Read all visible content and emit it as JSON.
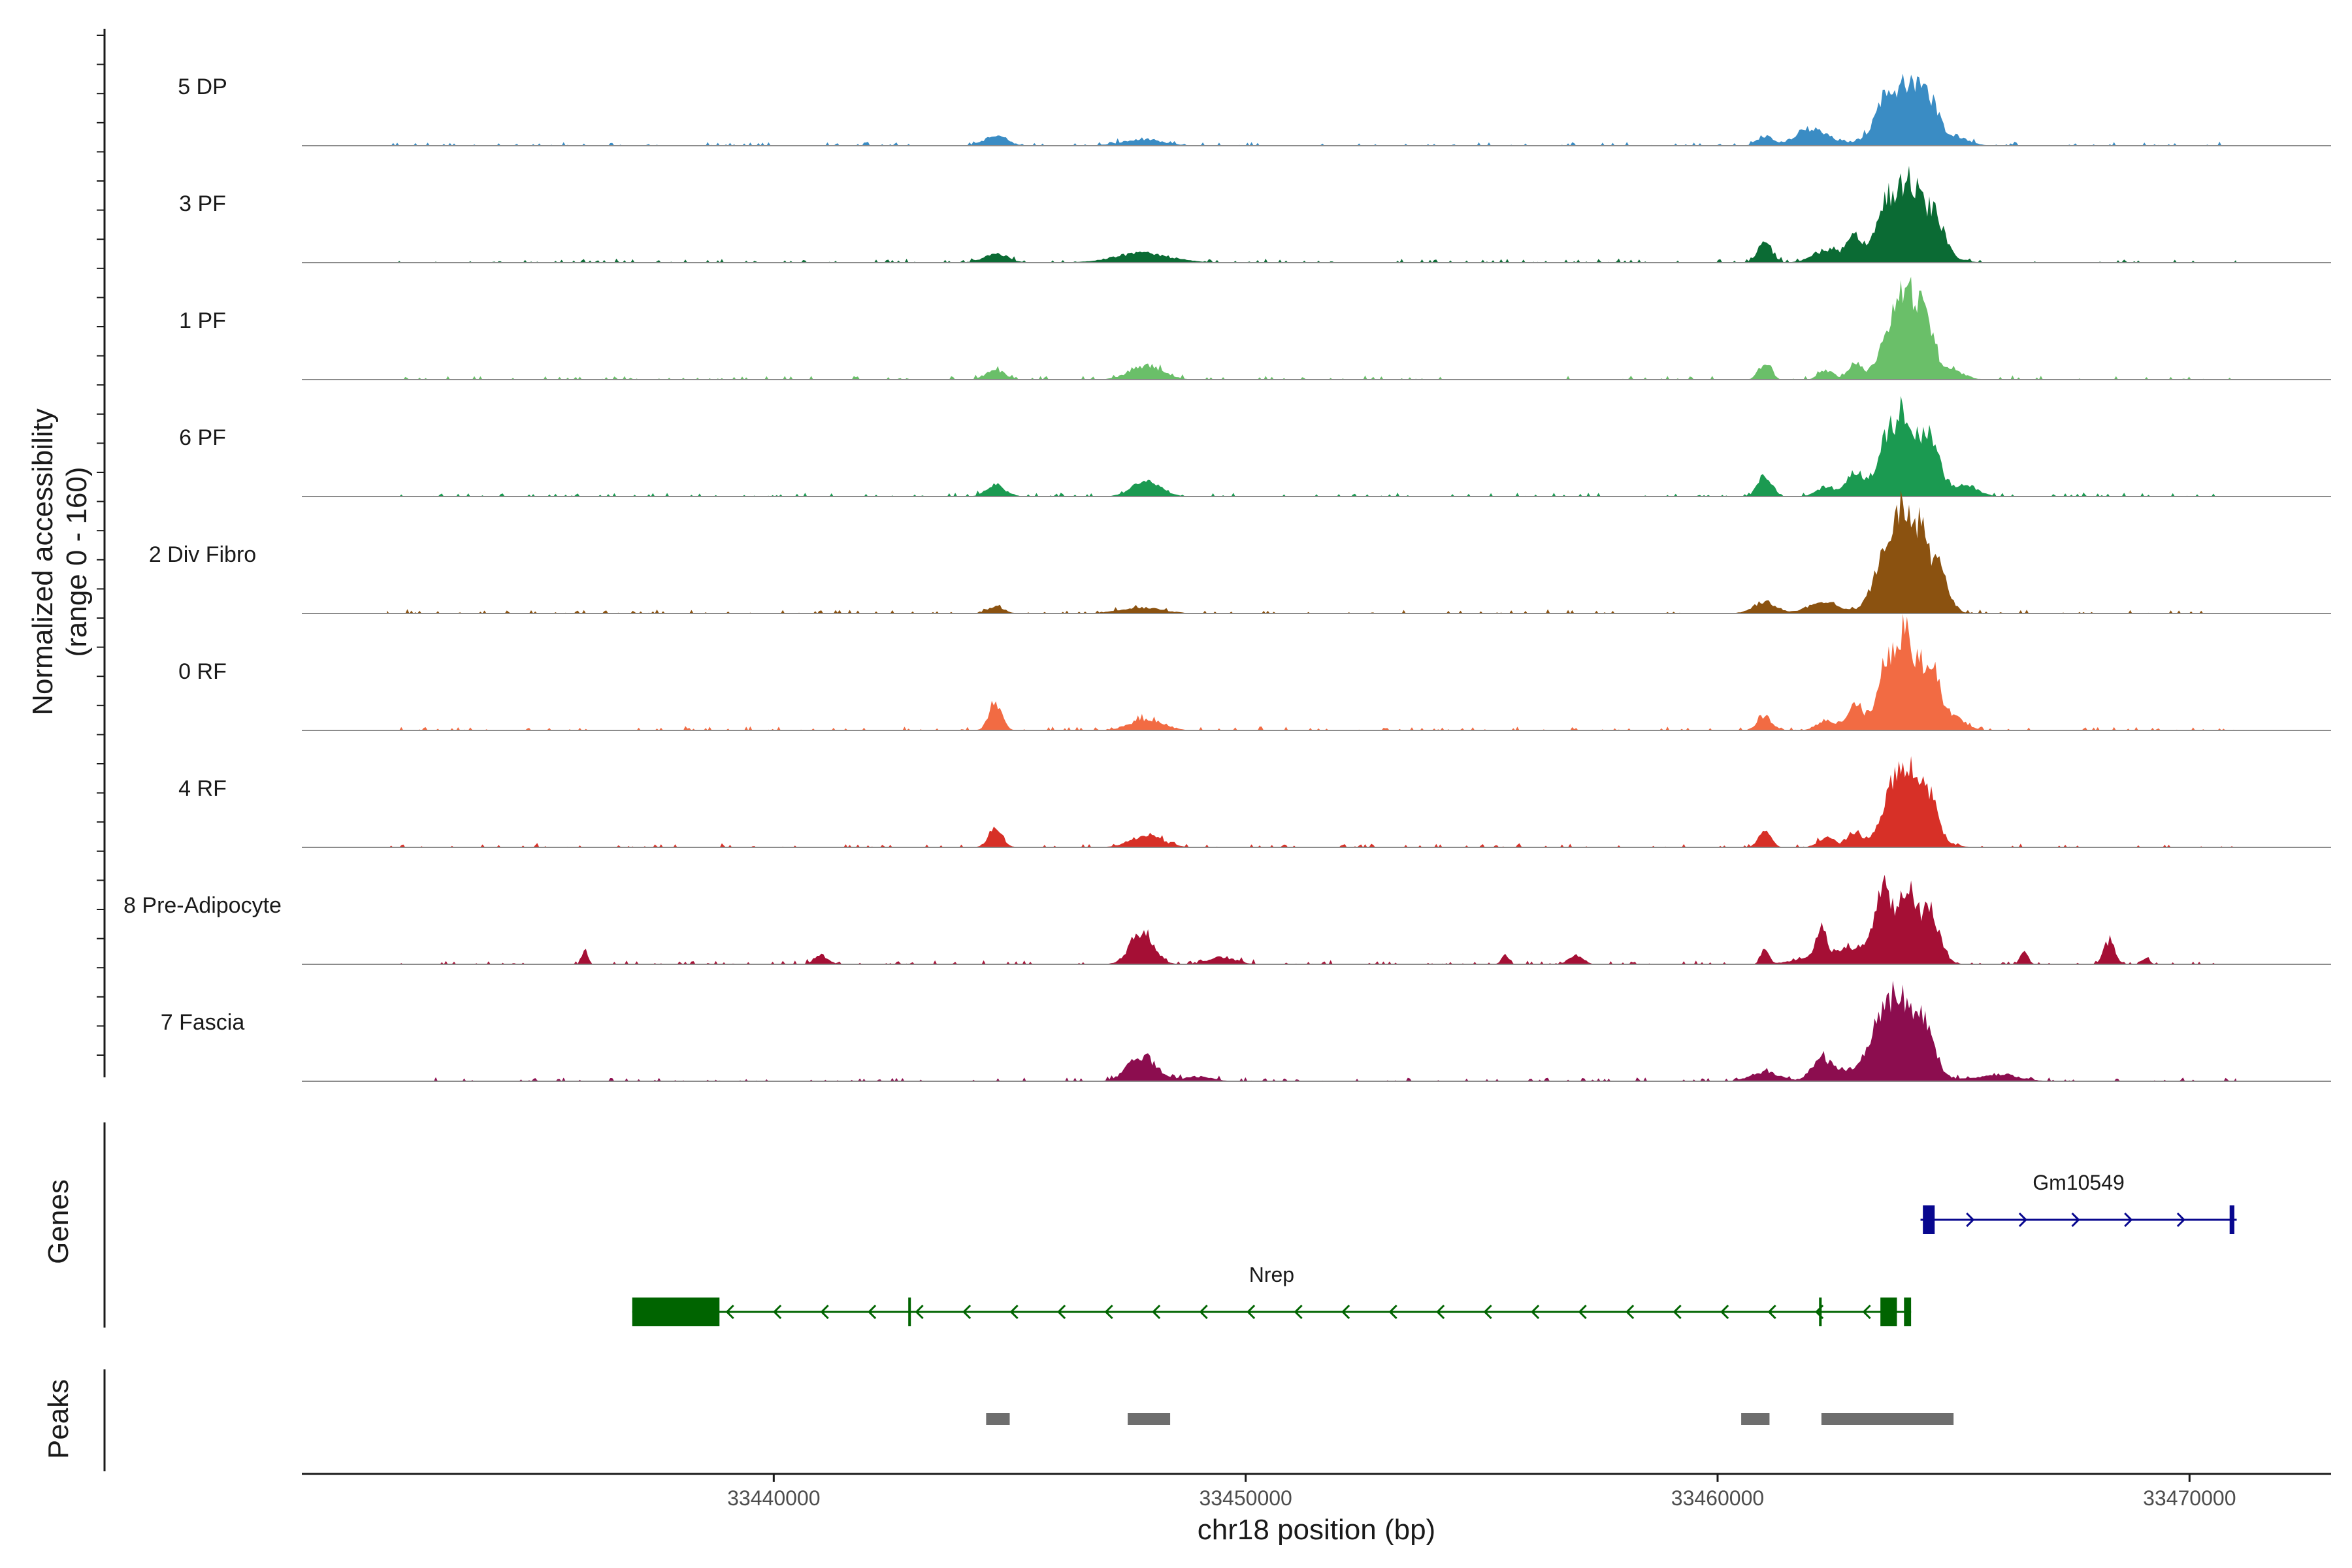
{
  "chart_data": {
    "type": "area",
    "subtype": "genome-coverage-tracks",
    "y_axis_title": [
      "Normalized accessibility",
      "(range 0 - 160)"
    ],
    "y_range": [
      0,
      160
    ],
    "x_axis_title": "chr18 position (bp)",
    "x_range": [
      33430000,
      33473000
    ],
    "x_ticks": [
      33440000,
      33450000,
      33460000,
      33470000
    ],
    "panel_labels": {
      "genes": "Genes",
      "peaks": "Peaks"
    },
    "tracks": [
      {
        "name": "5 DP",
        "color": "#3a8cc4",
        "peaks": [
          [
            33444700,
            8,
            250
          ],
          [
            33447800,
            5,
            450
          ],
          [
            33461000,
            8,
            160
          ],
          [
            33462000,
            14,
            350
          ],
          [
            33463600,
            28,
            220
          ],
          [
            33464100,
            38,
            200
          ],
          [
            33464500,
            30,
            180
          ],
          [
            33463800,
            18,
            500
          ],
          [
            33465000,
            8,
            300
          ]
        ]
      },
      {
        "name": "3 PF",
        "color": "#0b6b34",
        "peaks": [
          [
            33444700,
            8,
            250
          ],
          [
            33447800,
            8,
            600
          ],
          [
            33461000,
            18,
            150
          ],
          [
            33462300,
            10,
            300
          ],
          [
            33462900,
            16,
            160
          ],
          [
            33463600,
            36,
            200
          ],
          [
            33464100,
            46,
            220
          ],
          [
            33464600,
            30,
            200
          ],
          [
            33463900,
            20,
            600
          ]
        ]
      },
      {
        "name": "1 PF",
        "color": "#6abf69",
        "peaks": [
          [
            33444700,
            8,
            200
          ],
          [
            33447900,
            12,
            350
          ],
          [
            33461000,
            14,
            130
          ],
          [
            33462300,
            8,
            150
          ],
          [
            33462900,
            12,
            130
          ],
          [
            33463600,
            24,
            160
          ],
          [
            33464000,
            56,
            200
          ],
          [
            33464400,
            40,
            180
          ],
          [
            33463900,
            18,
            500
          ],
          [
            33465000,
            6,
            250
          ]
        ]
      },
      {
        "name": "6 PF",
        "color": "#1b9a51",
        "peaks": [
          [
            33444700,
            10,
            200
          ],
          [
            33447900,
            14,
            300
          ],
          [
            33461000,
            18,
            150
          ],
          [
            33462300,
            8,
            200
          ],
          [
            33462900,
            16,
            150
          ],
          [
            33463600,
            30,
            200
          ],
          [
            33464000,
            48,
            200
          ],
          [
            33464500,
            36,
            200
          ],
          [
            33463900,
            20,
            600
          ],
          [
            33465300,
            8,
            250
          ]
        ]
      },
      {
        "name": "2 Div Fibro",
        "color": "#8b5210",
        "peaks": [
          [
            33444700,
            6,
            180
          ],
          [
            33447800,
            5,
            450
          ],
          [
            33461000,
            10,
            250
          ],
          [
            33462200,
            10,
            300
          ],
          [
            33463500,
            30,
            200
          ],
          [
            33463900,
            66,
            180
          ],
          [
            33464300,
            52,
            160
          ],
          [
            33464700,
            34,
            180
          ],
          [
            33463900,
            22,
            500
          ]
        ]
      },
      {
        "name": "0 RF",
        "color": "#f26b43",
        "peaks": [
          [
            33444700,
            22,
            140
          ],
          [
            33447900,
            10,
            350
          ],
          [
            33461000,
            12,
            150
          ],
          [
            33462300,
            8,
            200
          ],
          [
            33462900,
            16,
            150
          ],
          [
            33463600,
            38,
            160
          ],
          [
            33464000,
            62,
            180
          ],
          [
            33464500,
            44,
            180
          ],
          [
            33463900,
            22,
            600
          ],
          [
            33465000,
            8,
            250
          ]
        ]
      },
      {
        "name": "4 RF",
        "color": "#d73027",
        "peaks": [
          [
            33444700,
            16,
            150
          ],
          [
            33447900,
            10,
            350
          ],
          [
            33461000,
            14,
            130
          ],
          [
            33462300,
            8,
            180
          ],
          [
            33462900,
            12,
            150
          ],
          [
            33463700,
            36,
            200
          ],
          [
            33464100,
            44,
            200
          ],
          [
            33464500,
            30,
            180
          ],
          [
            33464000,
            18,
            500
          ]
        ]
      },
      {
        "name": "8 Pre-Adipocyte",
        "color": "#a50f35",
        "peaks": [
          [
            33436000,
            12,
            60
          ],
          [
            33441000,
            8,
            150
          ],
          [
            33447800,
            28,
            250
          ],
          [
            33449500,
            6,
            300
          ],
          [
            33455500,
            8,
            80
          ],
          [
            33457000,
            8,
            150
          ],
          [
            33461000,
            12,
            80
          ],
          [
            33462200,
            26,
            100
          ],
          [
            33463500,
            52,
            180
          ],
          [
            33464000,
            58,
            180
          ],
          [
            33464500,
            44,
            200
          ],
          [
            33463000,
            14,
            800
          ],
          [
            33466500,
            12,
            80
          ],
          [
            33468300,
            20,
            120
          ],
          [
            33469100,
            6,
            60
          ]
        ]
      },
      {
        "name": "7 Fascia",
        "color": "#8c0d4f",
        "peaks": [
          [
            33447800,
            22,
            300
          ],
          [
            33449000,
            4,
            300
          ],
          [
            33461000,
            8,
            300
          ],
          [
            33462200,
            18,
            200
          ],
          [
            33463500,
            40,
            200
          ],
          [
            33463900,
            50,
            200
          ],
          [
            33464400,
            44,
            180
          ],
          [
            33463600,
            20,
            700
          ],
          [
            33466000,
            6,
            400
          ]
        ]
      }
    ],
    "genes": [
      {
        "name": "Gm10549",
        "strand": "+",
        "color": "#08078f",
        "start": 33464300,
        "end": 33471000,
        "exons": [
          [
            33464350,
            33464600
          ],
          [
            33470850,
            33470950
          ]
        ]
      },
      {
        "name": "Nrep",
        "strand": "-",
        "color": "#006400",
        "start": 33437000,
        "end": 33464100,
        "exons": [
          [
            33437000,
            33438850
          ],
          [
            33442850,
            33442900
          ],
          [
            33462150,
            33462200
          ],
          [
            33463450,
            33463800
          ],
          [
            33463950,
            33464100
          ]
        ]
      }
    ],
    "peaks": [
      [
        33444500,
        33445000
      ],
      [
        33447500,
        33448400
      ],
      [
        33460500,
        33461100
      ],
      [
        33462200,
        33465000
      ]
    ]
  }
}
